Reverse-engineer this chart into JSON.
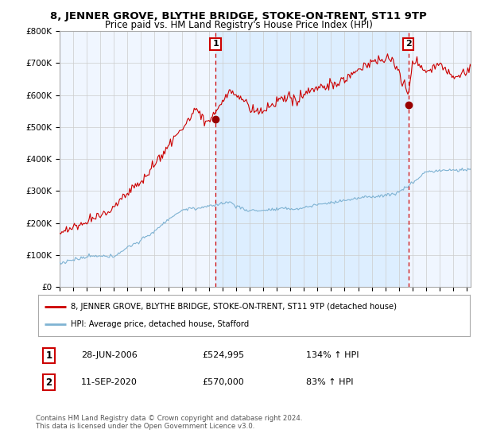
{
  "title": "8, JENNER GROVE, BLYTHE BRIDGE, STOKE-ON-TRENT, ST11 9TP",
  "subtitle": "Price paid vs. HM Land Registry's House Price Index (HPI)",
  "ylabel_ticks": [
    "£0",
    "£100K",
    "£200K",
    "£300K",
    "£400K",
    "£500K",
    "£600K",
    "£700K",
    "£800K"
  ],
  "ytick_values": [
    0,
    100000,
    200000,
    300000,
    400000,
    500000,
    600000,
    700000,
    800000
  ],
  "ylim": [
    0,
    800000
  ],
  "xlim_start": 1995.0,
  "xlim_end": 2025.3,
  "sale1_x": 2006.49,
  "sale1_y": 524995,
  "sale1_label": "1",
  "sale1_date": "28-JUN-2006",
  "sale1_price": "£524,995",
  "sale1_hpi": "134% ↑ HPI",
  "sale2_x": 2020.7,
  "sale2_y": 570000,
  "sale2_label": "2",
  "sale2_date": "11-SEP-2020",
  "sale2_price": "£570,000",
  "sale2_hpi": "83% ↑ HPI",
  "red_line_color": "#cc0000",
  "blue_line_color": "#7fb3d3",
  "shade_color": "#ddeeff",
  "legend_label_red": "8, JENNER GROVE, BLYTHE BRIDGE, STOKE-ON-TRENT, ST11 9TP (detached house)",
  "legend_label_blue": "HPI: Average price, detached house, Stafford",
  "footer": "Contains HM Land Registry data © Crown copyright and database right 2024.\nThis data is licensed under the Open Government Licence v3.0.",
  "background_color": "#ffffff",
  "grid_color": "#cccccc",
  "plot_bg_color": "#f0f6ff"
}
